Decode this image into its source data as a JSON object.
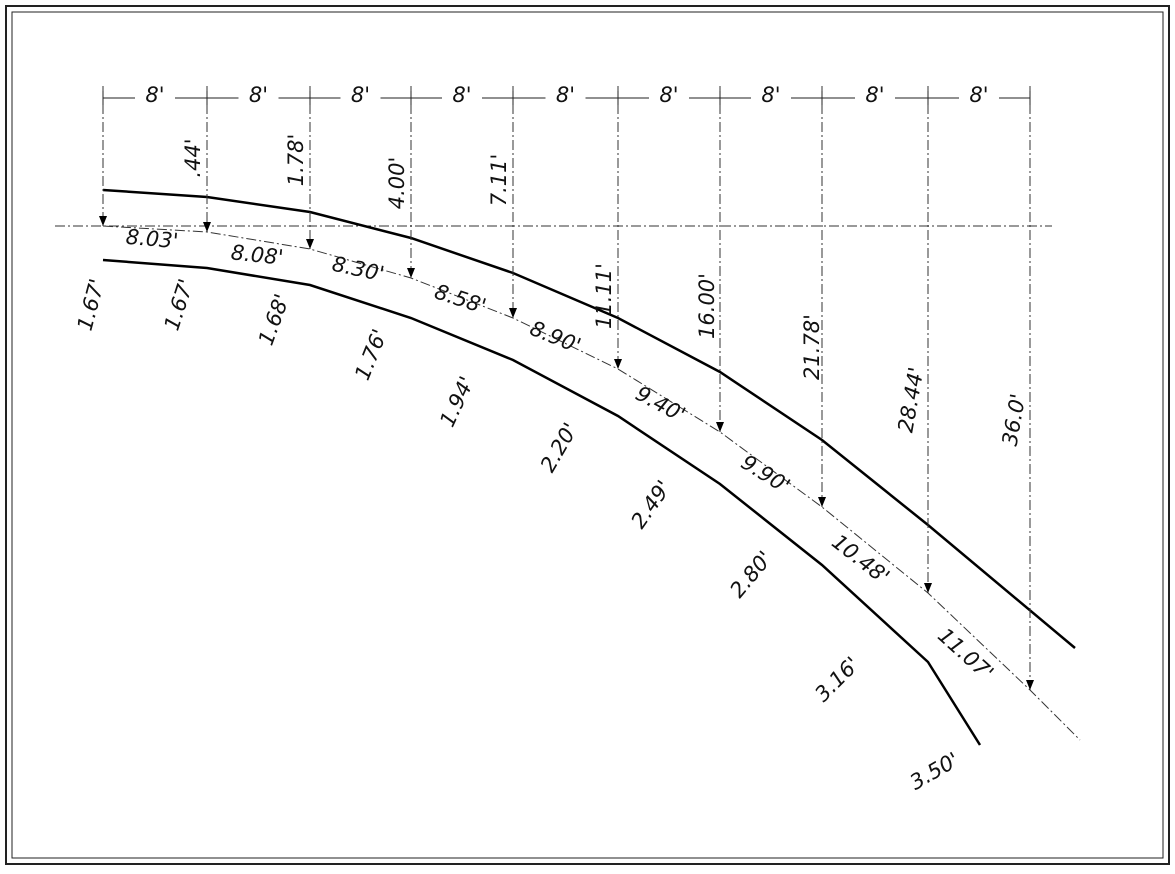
{
  "spacing_labels": [
    "8'",
    "8'",
    "8'",
    "8'",
    "8'",
    "8'",
    "8'",
    "8'",
    "8'"
  ],
  "offset_labels": [
    ".44'",
    "1.78'",
    "4.00'",
    "7.11'",
    "11.11'",
    "16.00'",
    "21.78'",
    "28.44'",
    "36.0'"
  ],
  "chord_labels": [
    "8.03'",
    "8.08'",
    "8.30'",
    "8.58'",
    "8.90'",
    "9.40'",
    "9.90'",
    "10.48'",
    "11.07'"
  ],
  "width_labels": [
    "1.67'",
    "1.67'",
    "1.68'",
    "1.76'",
    "1.94'",
    "2.20'",
    "2.49'",
    "2.80'",
    "3.16'",
    "3.50'"
  ]
}
